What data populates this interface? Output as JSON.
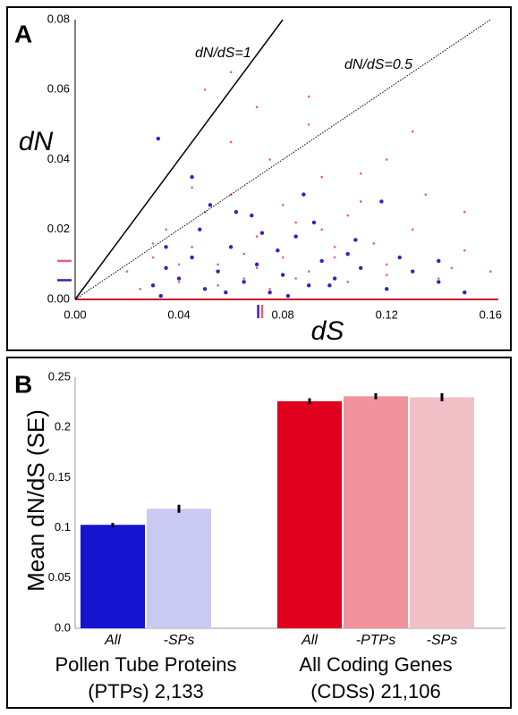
{
  "chart_data": [
    {
      "type": "scatter",
      "panel": "A",
      "xlabel": "dS",
      "ylabel": "dN",
      "xlim": [
        0,
        0.163
      ],
      "ylim": [
        0,
        0.08
      ],
      "xticks": [
        {
          "value": 0,
          "label": "0.00"
        },
        {
          "value": 0.04,
          "label": "0.04"
        },
        {
          "value": 0.08,
          "label": "0.08"
        },
        {
          "value": 0.12,
          "label": "0.12"
        },
        {
          "value": 0.16,
          "label": "0.16"
        }
      ],
      "yticks": [
        {
          "value": 0,
          "label": "0.00"
        },
        {
          "value": 0.02,
          "label": "0.02"
        },
        {
          "value": 0.04,
          "label": "0.04"
        },
        {
          "value": 0.06,
          "label": "0.06"
        },
        {
          "value": 0.08,
          "label": "0.08"
        }
      ],
      "ref_lines": [
        {
          "slope": 1,
          "label": "dN/dS=1",
          "style": "solid"
        },
        {
          "slope": 0.5,
          "label": "dN/dS=0.5",
          "style": "dotted"
        }
      ],
      "series": [
        {
          "color": "#e8607a",
          "size": 1.3,
          "x": [
            0.02,
            0.03,
            0.035,
            0.04,
            0.045,
            0.05,
            0.055,
            0.06,
            0.065,
            0.07,
            0.075,
            0.08,
            0.085,
            0.09,
            0.095,
            0.1,
            0.105,
            0.11,
            0.12,
            0.13,
            0.14,
            0.15,
            0.16,
            0.025,
            0.045,
            0.06,
            0.075,
            0.09,
            0.105,
            0.12,
            0.135,
            0.15,
            0.04,
            0.055,
            0.07,
            0.085,
            0.1,
            0.115,
            0.13,
            0.145,
            0.05,
            0.065,
            0.08,
            0.095,
            0.11,
            0.06,
            0.09,
            0.12,
            0.03,
            0.07
          ],
          "values": [
            0.008,
            0.012,
            0.02,
            0.005,
            0.015,
            0.025,
            0.01,
            0.03,
            0.006,
            0.018,
            0.04,
            0.012,
            0.022,
            0.008,
            0.035,
            0.015,
            0.005,
            0.028,
            0.01,
            0.02,
            0.006,
            0.014,
            0.008,
            0.003,
            0.032,
            0.045,
            0.003,
            0.05,
            0.024,
            0.04,
            0.03,
            0.025,
            0.01,
            0.004,
            0.055,
            0.006,
            0.012,
            0.016,
            0.048,
            0.009,
            0.06,
            0.013,
            0.027,
            0.02,
            0.036,
            0.065,
            0.058,
            0.007,
            0.016,
            0.009
          ],
          "mean_x": 0.072,
          "mean_y": 0.011
        },
        {
          "color": "#3a1ec0",
          "size": 2.2,
          "x": [
            0.03,
            0.035,
            0.04,
            0.045,
            0.05,
            0.055,
            0.06,
            0.065,
            0.07,
            0.075,
            0.08,
            0.085,
            0.09,
            0.095,
            0.1,
            0.11,
            0.12,
            0.13,
            0.14,
            0.15,
            0.032,
            0.048,
            0.062,
            0.078,
            0.092,
            0.108,
            0.125,
            0.052,
            0.068,
            0.088,
            0.035,
            0.058,
            0.082,
            0.105,
            0.14,
            0.045,
            0.072,
            0.098,
            0.033,
            0.118
          ],
          "values": [
            0.004,
            0.009,
            0.006,
            0.012,
            0.003,
            0.008,
            0.015,
            0.005,
            0.01,
            0.002,
            0.007,
            0.018,
            0.004,
            0.011,
            0.006,
            0.009,
            0.003,
            0.008,
            0.005,
            0.002,
            0.046,
            0.02,
            0.025,
            0.014,
            0.022,
            0.017,
            0.012,
            0.027,
            0.024,
            0.03,
            0.015,
            0.002,
            0.001,
            0.013,
            0.011,
            0.035,
            0.019,
            0.004,
            0.001,
            0.028
          ],
          "mean_x": 0.0705,
          "mean_y": 0.0055
        }
      ]
    },
    {
      "type": "bar",
      "panel": "B",
      "ylabel": "Mean dN/dS (SE)",
      "ylim": [
        0,
        0.25
      ],
      "yticks": [
        {
          "value": 0,
          "label": "0.0"
        },
        0.05,
        0.1,
        0.15,
        0.2,
        0.25
      ],
      "groups": [
        {
          "name_lines": [
            "Pollen Tube Proteins",
            "(PTPs) 2,133"
          ],
          "categories": [
            "All",
            "-SPs"
          ],
          "values": [
            0.103,
            0.119
          ],
          "errors": [
            0.002,
            0.004
          ],
          "colors": [
            "#1515d0",
            "#c9c9f2"
          ]
        },
        {
          "name_lines": [
            "All Coding Genes",
            "(CDSs) 21,106"
          ],
          "categories": [
            "All",
            "-PTPs",
            "-SPs"
          ],
          "values": [
            0.226,
            0.231,
            0.23
          ],
          "errors": [
            0.003,
            0.003,
            0.004
          ],
          "colors": [
            "#e0001e",
            "#f0939c",
            "#f0c0c6"
          ]
        }
      ]
    }
  ]
}
